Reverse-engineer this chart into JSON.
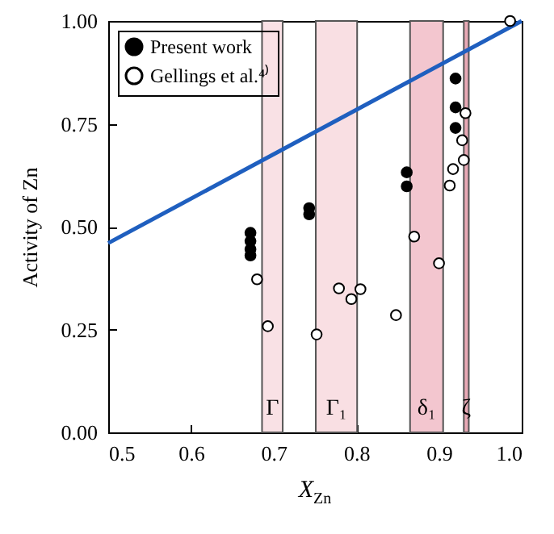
{
  "chart_data": {
    "type": "scatter",
    "xlabel": "X$_{Zn}$",
    "ylabel": "Activity of Zn",
    "xlim": [
      0.5,
      1.0
    ],
    "ylim": [
      0,
      1.0
    ],
    "xticks": [
      0.5,
      0.6,
      0.7,
      0.8,
      0.9,
      {
        "value": 1.0,
        "label": "1.0"
      }
    ],
    "yticks": [
      {
        "value": 0,
        "label": "0.00"
      },
      {
        "value": 0.25,
        "label": "0.25"
      },
      {
        "value": 0.5,
        "label": "0.50"
      },
      {
        "value": 0.75,
        "label": "0.75"
      },
      {
        "value": 1.0,
        "label": "1.00"
      }
    ],
    "grid": false,
    "legend": "top left",
    "series": [
      {
        "type": "line",
        "color": "#1f5fbf",
        "x": [
          0.5,
          1.0
        ],
        "values": [
          0.46,
          1.0
        ]
      },
      {
        "name": "Present work",
        "color": "#000000",
        "x": [
          0.672,
          0.672,
          0.672,
          0.672,
          0.743,
          0.743,
          0.861,
          0.861,
          0.92,
          0.92,
          0.92
        ],
        "values": [
          0.485,
          0.465,
          0.445,
          0.43,
          0.545,
          0.53,
          0.632,
          0.598,
          0.86,
          0.79,
          0.74
        ]
      },
      {
        "name": "Gellings et al.⁴⁾",
        "color": "#ffffff",
        "x": [
          0.68,
          0.693,
          0.752,
          0.779,
          0.794,
          0.805,
          0.848,
          0.87,
          0.9,
          0.913,
          0.917,
          0.928,
          0.93,
          0.932,
          0.986
        ],
        "values": [
          0.372,
          0.258,
          0.238,
          0.35,
          0.324,
          0.348,
          0.285,
          0.476,
          0.411,
          0.6,
          0.64,
          0.71,
          0.662,
          0.776,
          1.0
        ]
      }
    ],
    "bands": [
      {
        "axis": "x",
        "from": 0.686,
        "to": 0.711,
        "color": "#f9e1e5",
        "label": "Γ"
      },
      {
        "axis": "x",
        "from": 0.751,
        "to": 0.801,
        "color": "#f9dfe3",
        "label": "Γ₁"
      },
      {
        "axis": "x",
        "from": 0.865,
        "to": 0.905,
        "color": "#f3c6cf",
        "label": "δ₁"
      },
      {
        "axis": "x",
        "from": 0.93,
        "to": 0.936,
        "color": "#e8a9b5",
        "label": "ζ"
      }
    ]
  }
}
